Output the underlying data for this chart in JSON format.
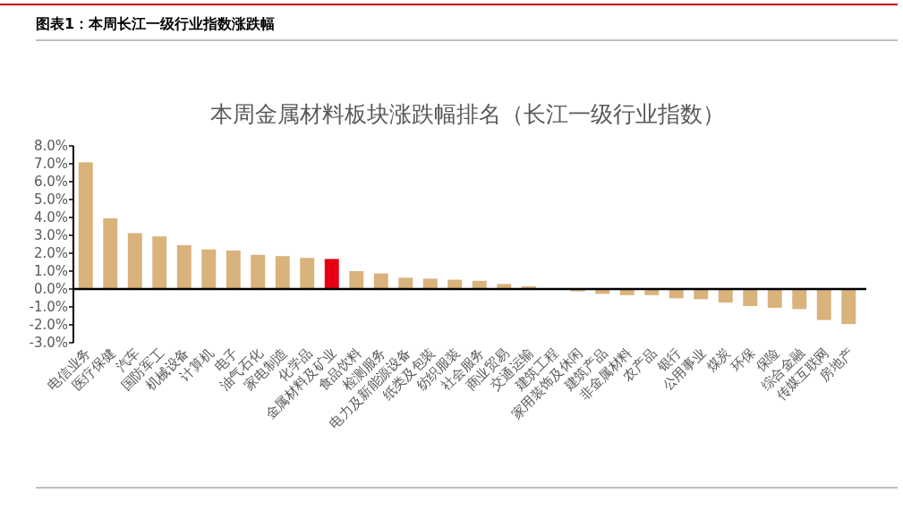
{
  "chart_data": {
    "type": "bar",
    "title": "本周金属材料板块涨跌幅排名（长江一级行业指数）",
    "annotations": [
      "图表1：本周长江一级行业指数涨跌幅"
    ],
    "categories": [
      "电信业务",
      "医疗保健",
      "汽车",
      "国防军工",
      "机械设备",
      "计算机",
      "电子",
      "油气石化",
      "家电制造",
      "化学品",
      "金属材料及矿业",
      "食品饮料",
      "检测服务",
      "电力及新能源设备",
      "纸类及包装",
      "纺织服装",
      "社会服务",
      "商业贸易",
      "交通运输",
      "建筑工程",
      "家用装饰及休闲",
      "建筑产品",
      "非金属材料",
      "农产品",
      "银行",
      "公用事业",
      "煤炭",
      "环保",
      "保险",
      "综合金融",
      "传媒互联网",
      "房地产"
    ],
    "values": [
      7.08,
      3.95,
      3.12,
      2.94,
      2.45,
      2.21,
      2.15,
      1.91,
      1.84,
      1.74,
      1.68,
      1.0,
      0.87,
      0.63,
      0.58,
      0.52,
      0.46,
      0.28,
      0.16,
      0.0,
      -0.13,
      -0.27,
      -0.34,
      -0.34,
      -0.52,
      -0.57,
      -0.76,
      -0.95,
      -1.05,
      -1.12,
      -1.73,
      -1.96
    ],
    "colors": [
      "#d9b27c",
      "#d9b27c",
      "#d9b27c",
      "#d9b27c",
      "#d9b27c",
      "#d9b27c",
      "#d9b27c",
      "#d9b27c",
      "#d9b27c",
      "#d9b27c",
      "#e60012",
      "#d9b27c",
      "#d9b27c",
      "#d9b27c",
      "#d9b27c",
      "#d9b27c",
      "#d9b27c",
      "#d9b27c",
      "#d9b27c",
      "#d9b27c",
      "#d9b27c",
      "#d9b27c",
      "#d9b27c",
      "#d9b27c",
      "#d9b27c",
      "#d9b27c",
      "#d9b27c",
      "#d9b27c",
      "#d9b27c",
      "#d9b27c",
      "#d9b27c",
      "#d9b27c"
    ],
    "ylim": [
      -3,
      8
    ],
    "yticks": [
      {
        "value": -3,
        "label": "-3.0%"
      },
      {
        "value": -2,
        "label": "-2.0%"
      },
      {
        "value": -1,
        "label": "-1.0%"
      },
      {
        "value": 0,
        "label": "0.0%"
      },
      {
        "value": 1,
        "label": "1.0%"
      },
      {
        "value": 2,
        "label": "2.0%"
      },
      {
        "value": 3,
        "label": "3.0%"
      },
      {
        "value": 4,
        "label": "4.0%"
      },
      {
        "value": 5,
        "label": "5.0%"
      },
      {
        "value": 6,
        "label": "6.0%"
      },
      {
        "value": 7,
        "label": "7.0%"
      },
      {
        "value": 8,
        "label": "8.0%"
      }
    ]
  }
}
